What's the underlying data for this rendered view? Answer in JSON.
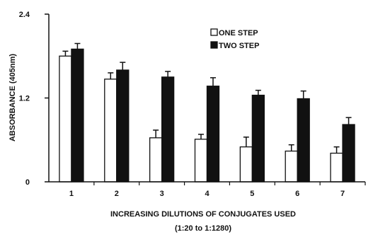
{
  "chart_data": {
    "type": "bar",
    "categories": [
      "1",
      "2",
      "3",
      "4",
      "5",
      "6",
      "7"
    ],
    "series": [
      {
        "name": "ONE STEP",
        "values": [
          1.8,
          1.47,
          0.63,
          0.61,
          0.5,
          0.44,
          0.41
        ],
        "errors": [
          0.07,
          0.09,
          0.11,
          0.07,
          0.14,
          0.09,
          0.09
        ],
        "color": "#ffffff"
      },
      {
        "name": "TWO STEP",
        "values": [
          1.9,
          1.6,
          1.5,
          1.37,
          1.24,
          1.19,
          0.82
        ],
        "errors": [
          0.08,
          0.11,
          0.08,
          0.12,
          0.07,
          0.11,
          0.1
        ],
        "color": "#111111"
      }
    ],
    "title": "",
    "xlabel": "INCREASING DILUTIONS OF CONJUGATES USED",
    "xlabel_sub": "(1:20 to 1:1280)",
    "ylabel": "ABSORBANCE (405nm)",
    "ylim": [
      0,
      2.4
    ],
    "yticks": [
      "0",
      "1.2",
      "2.4"
    ],
    "ytick_values": [
      0,
      1.2,
      2.4
    ],
    "grid": false,
    "legend_position": "top-right"
  }
}
